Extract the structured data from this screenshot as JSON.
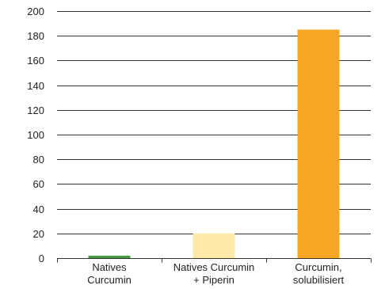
{
  "chart_data": {
    "type": "bar",
    "categories": [
      [
        "Natives",
        "Curcumin"
      ],
      [
        "Natives Curcumin",
        "+ Piperin"
      ],
      [
        "Curcumin,",
        "solubilisiert"
      ]
    ],
    "values": [
      2,
      20,
      185
    ],
    "colors": [
      "#4a9a45",
      "#fde8a6",
      "#f5a623"
    ],
    "ylim": [
      0,
      200
    ],
    "yticks": [
      0,
      20,
      40,
      60,
      80,
      100,
      120,
      140,
      160,
      180,
      200
    ],
    "grid": true,
    "title": "",
    "xlabel": "",
    "ylabel": ""
  }
}
